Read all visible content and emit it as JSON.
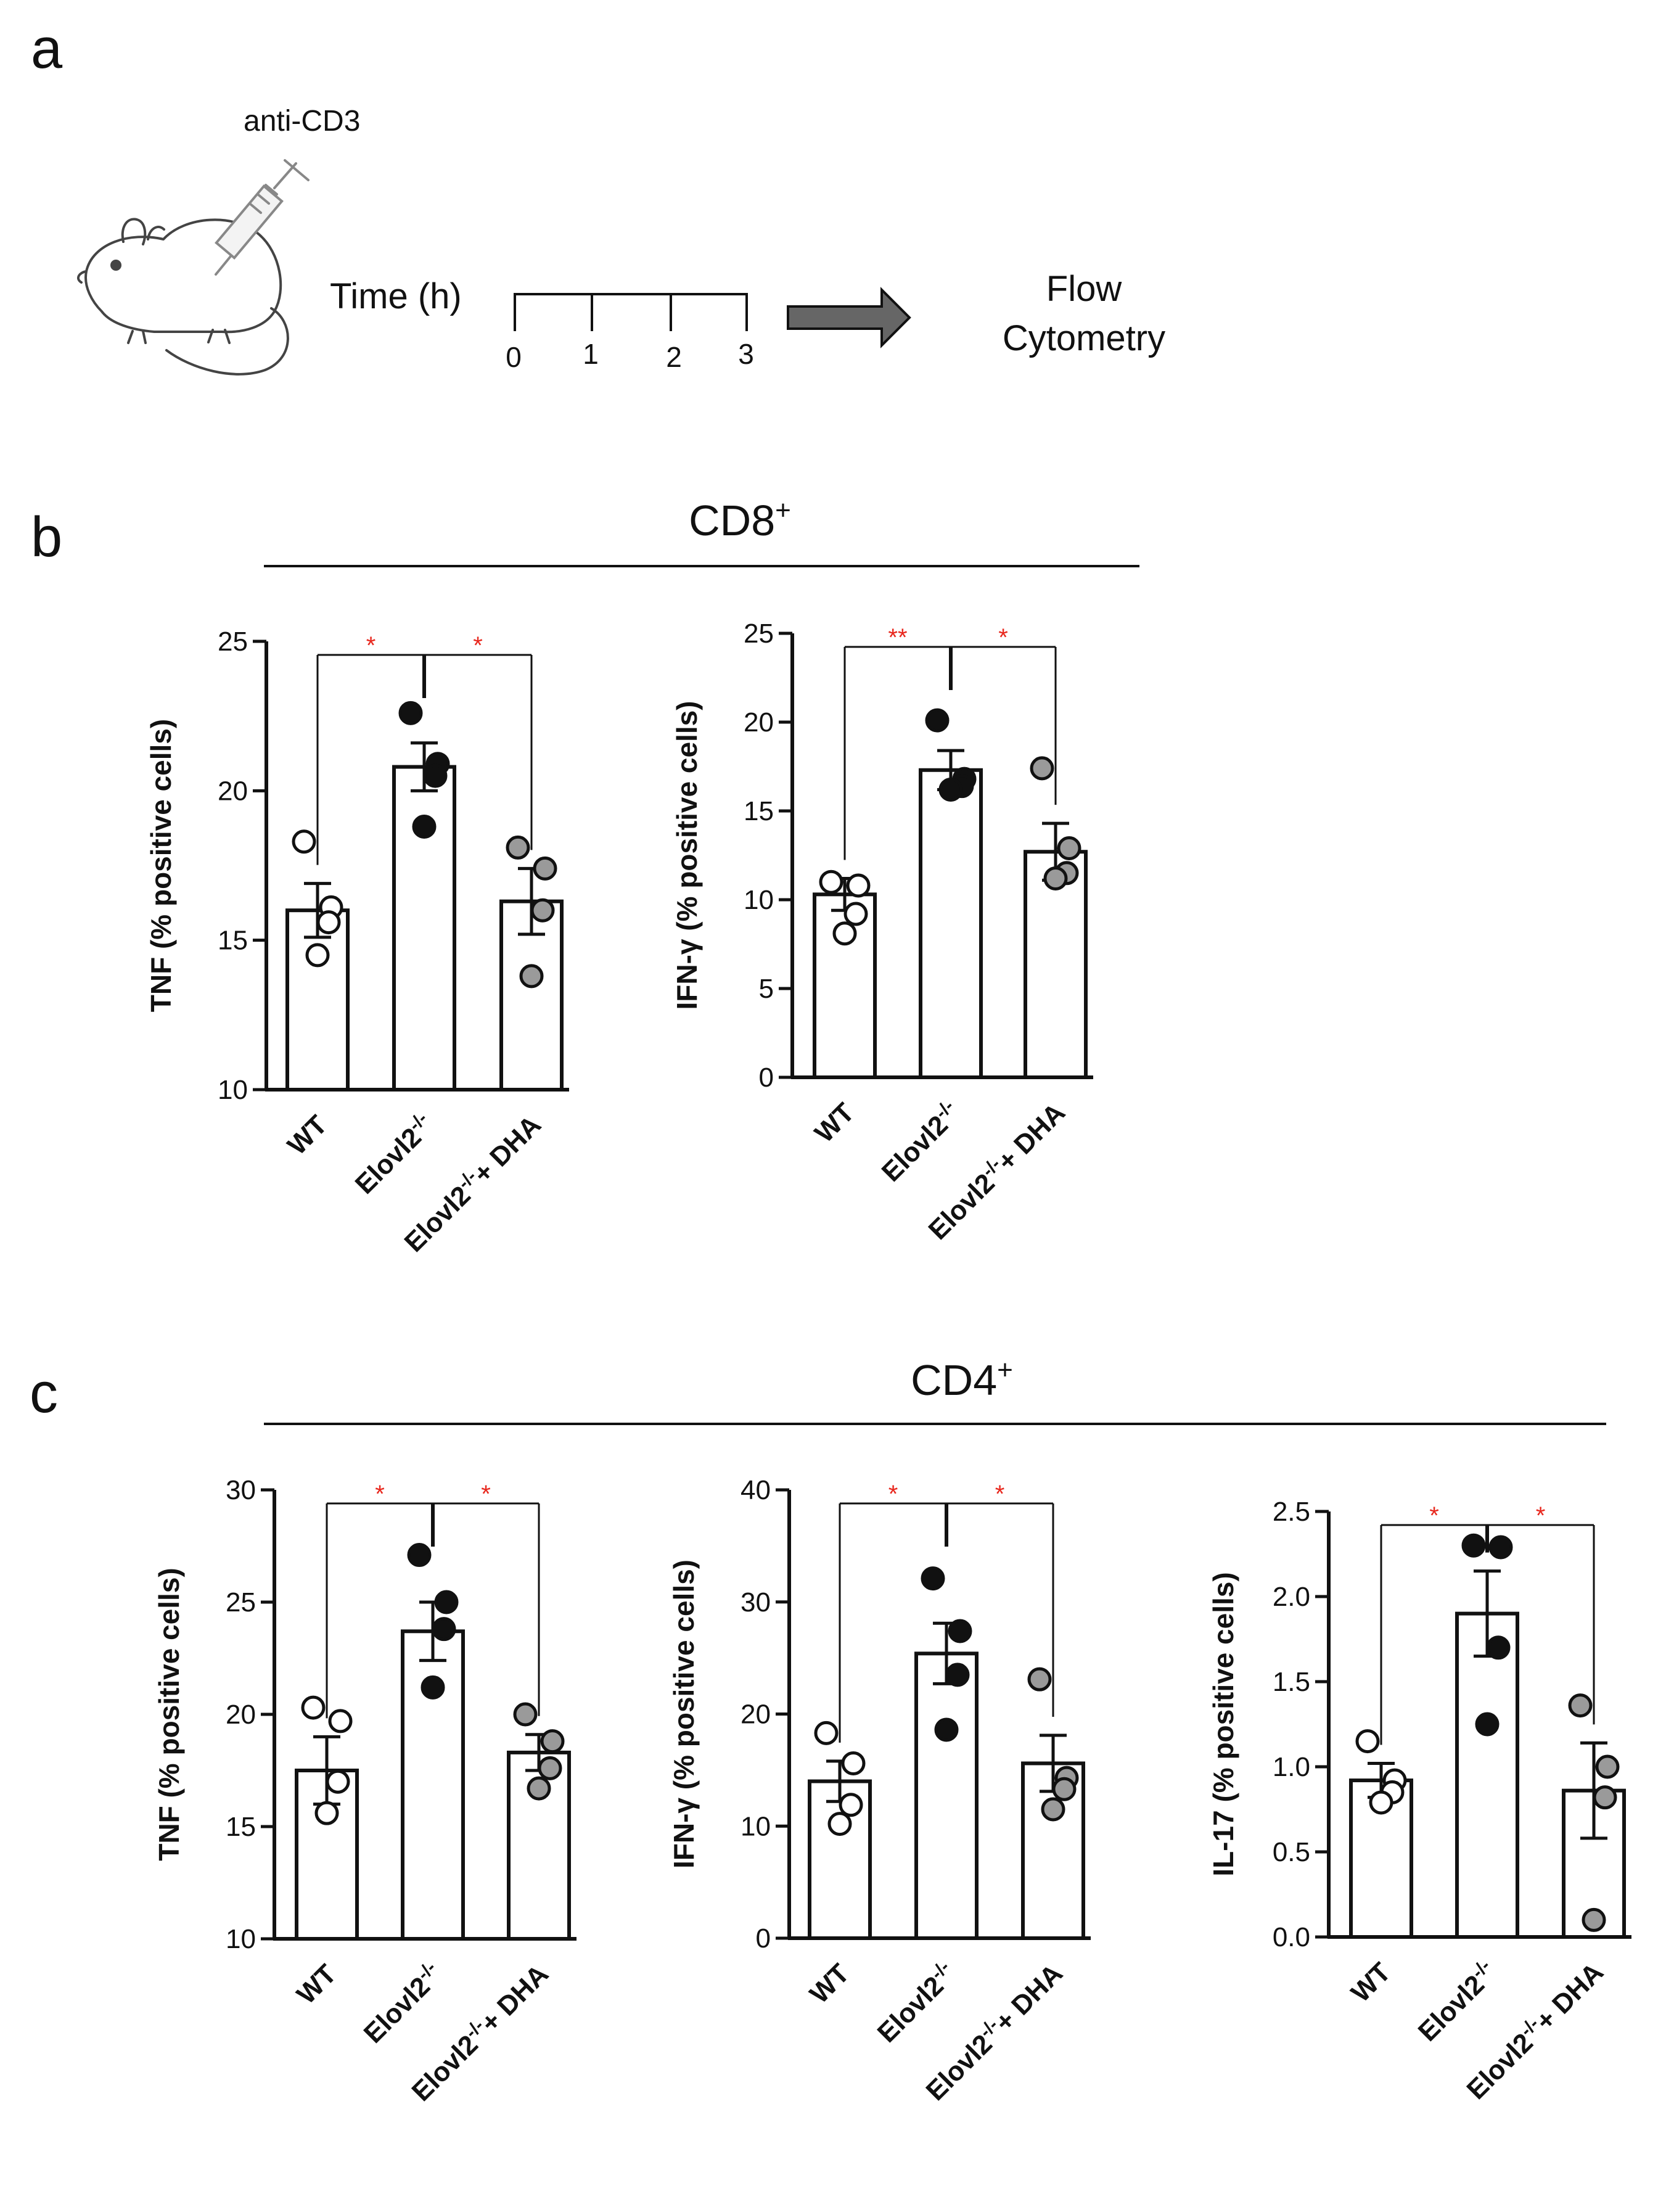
{
  "panel_a": {
    "label": "a",
    "injection_label": "anti-CD3",
    "timeline_label": "Time (h)",
    "timepoints": [
      "0",
      "1",
      "2",
      "3"
    ],
    "outcome_line1": "Flow",
    "outcome_line2": "Cytometry"
  },
  "panel_b": {
    "label": "b",
    "header": "CD8",
    "header_sup": "+"
  },
  "panel_c": {
    "label": "c",
    "header": "CD4",
    "header_sup": "+"
  },
  "colors": {
    "wt": "#ffffff",
    "ko": "#111111",
    "dha": "#9a9a9a",
    "significance": "#e8281e"
  },
  "chart_data": [
    {
      "id": "cd8-tnf",
      "type": "bar",
      "ylabel": "TNF (% positive cells)",
      "ylim": [
        10,
        25
      ],
      "yticks": [
        "10",
        "15",
        "20",
        "25"
      ],
      "categories": [
        "WT",
        "Elovl2-/-",
        "Elovl2-/-+ DHA"
      ],
      "values": [
        16.0,
        20.8,
        16.3
      ],
      "sem": [
        0.9,
        0.8,
        1.1
      ],
      "points": [
        [
          18.3,
          16.1,
          15.6,
          14.5
        ],
        [
          22.6,
          20.9,
          20.5,
          18.8
        ],
        [
          18.1,
          17.4,
          16.0,
          13.8
        ]
      ],
      "comparisons": [
        "*",
        "*"
      ]
    },
    {
      "id": "cd8-ifng",
      "type": "bar",
      "ylabel": "IFN-γ (% positive cells)",
      "ylim": [
        0,
        25
      ],
      "yticks": [
        "0",
        "5",
        "10",
        "15",
        "20",
        "25"
      ],
      "categories": [
        "WT",
        "Elovl2-/-",
        "Elovl2-/-+ DHA"
      ],
      "values": [
        10.3,
        17.3,
        12.7
      ],
      "sem": [
        0.9,
        1.1,
        1.6
      ],
      "points": [
        [
          11.0,
          10.8,
          9.2,
          8.1
        ],
        [
          20.1,
          16.8,
          16.4,
          16.2
        ],
        [
          17.4,
          12.9,
          11.5,
          11.2
        ]
      ],
      "comparisons": [
        "**",
        "*"
      ]
    },
    {
      "id": "cd4-tnf",
      "type": "bar",
      "ylabel": "TNF (% positive cells)",
      "ylim": [
        10,
        30
      ],
      "yticks": [
        "10",
        "15",
        "20",
        "25",
        "30"
      ],
      "categories": [
        "WT",
        "Elovl2-/-",
        "Elovl2-/-+ DHA"
      ],
      "values": [
        17.5,
        23.7,
        18.3
      ],
      "sem": [
        1.5,
        1.3,
        0.8
      ],
      "points": [
        [
          20.3,
          19.7,
          17.0,
          15.6
        ],
        [
          27.1,
          25.0,
          23.8,
          21.2
        ],
        [
          20.0,
          18.8,
          17.6,
          16.7
        ]
      ],
      "comparisons": [
        "*",
        "*"
      ]
    },
    {
      "id": "cd4-ifng",
      "type": "bar",
      "ylabel": "IFN-γ (% positive cells)",
      "ylim": [
        0,
        40
      ],
      "yticks": [
        "0",
        "10",
        "20",
        "30",
        "40"
      ],
      "categories": [
        "WT",
        "Elovl2-/-",
        "Elovl2-/-+ DHA"
      ],
      "values": [
        14.0,
        25.4,
        15.6
      ],
      "sem": [
        1.8,
        2.7,
        2.5
      ],
      "points": [
        [
          18.3,
          15.6,
          11.9,
          10.2
        ],
        [
          32.1,
          27.4,
          23.5,
          18.6
        ],
        [
          23.1,
          14.3,
          13.3,
          11.5
        ]
      ],
      "comparisons": [
        "*",
        "*"
      ]
    },
    {
      "id": "cd4-il17",
      "type": "bar",
      "ylabel": "IL-17 (% positive cells)",
      "ylim": [
        0,
        2.5
      ],
      "yticks": [
        "0.0",
        "0.5",
        "1.0",
        "1.5",
        "2.0",
        "2.5"
      ],
      "categories": [
        "WT",
        "Elovl2-/-",
        "Elovl2-/-+ DHA"
      ],
      "values": [
        0.92,
        1.9,
        0.86
      ],
      "sem": [
        0.1,
        0.25,
        0.28
      ],
      "points": [
        [
          1.15,
          0.92,
          0.85,
          0.79
        ],
        [
          2.3,
          2.29,
          1.7,
          1.25
        ],
        [
          1.36,
          1.0,
          0.82,
          0.1
        ]
      ],
      "comparisons": [
        "*",
        "*"
      ]
    }
  ]
}
